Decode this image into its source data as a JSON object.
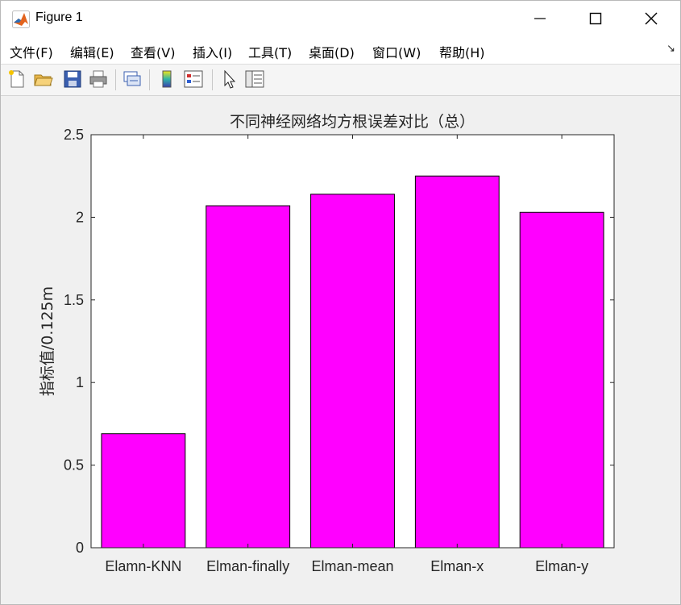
{
  "window": {
    "title": "Figure 1",
    "minimize_symbol": "—",
    "maximize_symbol": "☐",
    "close_symbol": "✕",
    "app_icon": "matlab-logo-icon"
  },
  "menu": {
    "items": [
      "文件(F)",
      "编辑(E)",
      "查看(V)",
      "插入(I)",
      "工具(T)",
      "桌面(D)",
      "窗口(W)",
      "帮助(H)"
    ],
    "corner_symbol": "↘"
  },
  "toolbar": {
    "icons": [
      "new-figure-icon",
      "open-file-icon",
      "save-icon",
      "print-icon",
      "link-plot-icon",
      "colorbar-icon",
      "legend-icon",
      "pointer-icon",
      "property-inspector-icon"
    ]
  },
  "chart_data": {
    "type": "bar",
    "title": "不同神经网络均方根误差对比（总）",
    "xlabel": "",
    "ylabel": "指标值/0.125m",
    "categories": [
      "Elamn-KNN",
      "Elman-finally",
      "Elman-mean",
      "Elman-x",
      "Elman-y"
    ],
    "values": [
      0.69,
      2.07,
      2.14,
      2.25,
      2.03
    ],
    "ylim": [
      0,
      2.5
    ],
    "yticks": [
      "0",
      "0.5",
      "1",
      "1.5",
      "2",
      "2.5"
    ],
    "bar_color": "#ff00ff",
    "grid": false
  }
}
